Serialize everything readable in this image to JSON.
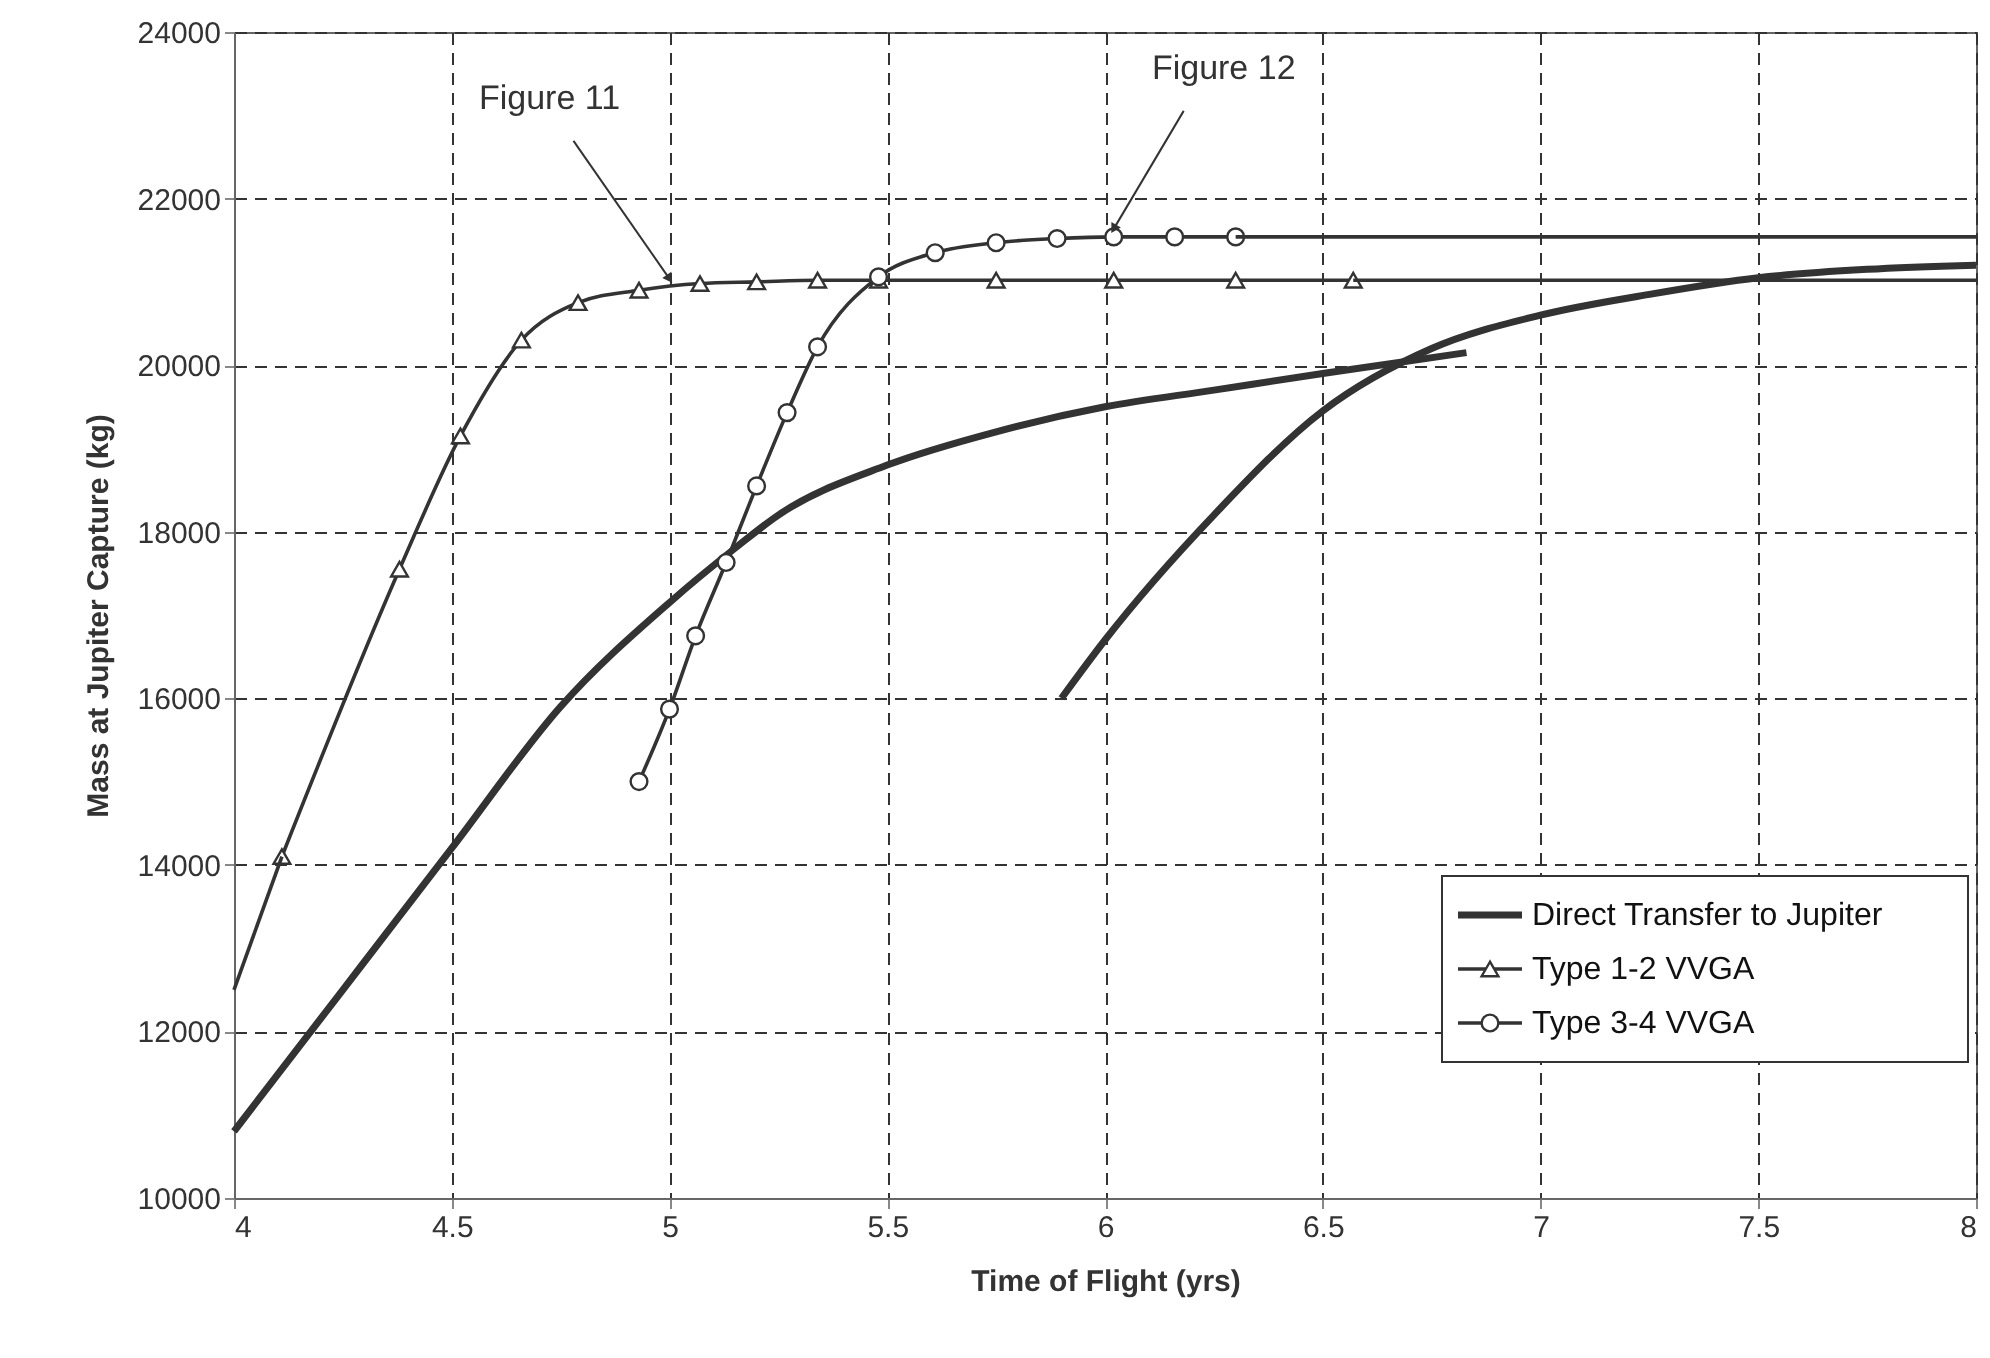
{
  "chart_data": {
    "type": "line",
    "xlabel": "Time of Flight (yrs)",
    "ylabel": "Mass at Jupiter Capture (kg)",
    "xlim": [
      4,
      8
    ],
    "xticks": [
      4,
      4.5,
      5,
      5.5,
      6,
      6.5,
      7,
      7.5,
      8
    ],
    "ylim": [
      10000,
      24000
    ],
    "yticks": [
      10000,
      12000,
      14000,
      16000,
      18000,
      20000,
      22000,
      24000
    ],
    "grid": true,
    "legend": "bottom right",
    "line_style": "solid",
    "series": [
      {
        "name": "Direct Transfer to Jupiter",
        "color": "#333333",
        "marker": "none",
        "x": [
          4,
          4.25,
          4.5,
          4.75,
          5.0,
          5.15,
          5.25,
          5.5,
          5.75,
          6.0,
          6.25,
          6.5,
          6.83,
          null,
          5.9,
          6.0,
          6.25,
          6.5,
          6.75,
          7.0,
          7.25,
          7.5,
          7.75,
          8.0
        ],
        "values": [
          10800,
          12500,
          14200,
          15900,
          17150,
          17800,
          18200,
          18800,
          19200,
          19500,
          19700,
          19900,
          20150,
          null,
          16000,
          16700,
          18200,
          19450,
          20200,
          20600,
          20850,
          21050,
          21150,
          21200
        ]
      },
      {
        "name": "Type 1-2 VVGA",
        "color": "#333333",
        "marker": "triangle",
        "x": [
          4.11,
          4.38,
          4.52,
          4.66,
          4.79,
          4.93,
          5.07,
          5.2,
          5.34,
          5.48,
          5.75,
          6.02,
          6.3,
          6.57
        ],
        "values": [
          14100,
          17550,
          19150,
          20300,
          20750,
          20900,
          20980,
          21000,
          21020,
          21020,
          21020,
          21020,
          21020,
          21020
        ]
      },
      {
        "name": "Type 3-4 VVGA",
        "color": "#333333",
        "marker": "circle",
        "x": [
          4.93,
          5.0,
          5.06,
          5.13,
          5.2,
          5.27,
          5.34,
          5.48,
          5.61,
          5.75,
          5.89,
          6.02,
          6.16,
          6.3
        ],
        "values": [
          15000,
          15870,
          16750,
          17630,
          18550,
          19430,
          20220,
          21060,
          21350,
          21470,
          21520,
          21540,
          21540,
          21540
        ]
      },
      {
        "color": "#333333",
        "marker": "none",
        "x": [
          4,
          4.11,
          null,
          6.57,
          8,
          null,
          6.3,
          8
        ],
        "values": [
          12500,
          14100,
          null,
          21020,
          21020,
          null,
          21540,
          21540
        ]
      }
    ],
    "annotations": [
      {
        "text": "Figure 11",
        "x": 5.0,
        "y": 20940
      },
      {
        "text": "Figure 12",
        "x": 6.02,
        "y": 21540
      }
    ]
  }
}
